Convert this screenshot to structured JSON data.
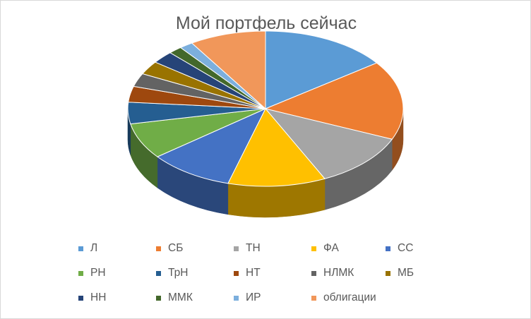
{
  "chart_data": {
    "type": "pie",
    "variant": "3d",
    "title": "Мой портфель сейчас",
    "categories": [
      "Л",
      "СБ",
      "ТН",
      "ФА",
      "СС",
      "РН",
      "ТрН",
      "НТ",
      "НЛМК",
      "МБ",
      "НН",
      "ММК",
      "ИР",
      "облигации"
    ],
    "values": [
      15,
      16.5,
      11.5,
      11.5,
      10,
      7.5,
      4.5,
      3.3,
      2.8,
      2.8,
      2.6,
      1.6,
      1.6,
      9
    ],
    "colors": [
      "#5B9BD5",
      "#ED7D31",
      "#A5A5A5",
      "#FFC000",
      "#4472C4",
      "#70AD47",
      "#255E91",
      "#9E480E",
      "#636363",
      "#997300",
      "#264478",
      "#43682B",
      "#7CAFDD",
      "#F1975A"
    ],
    "legend": "bottom"
  }
}
